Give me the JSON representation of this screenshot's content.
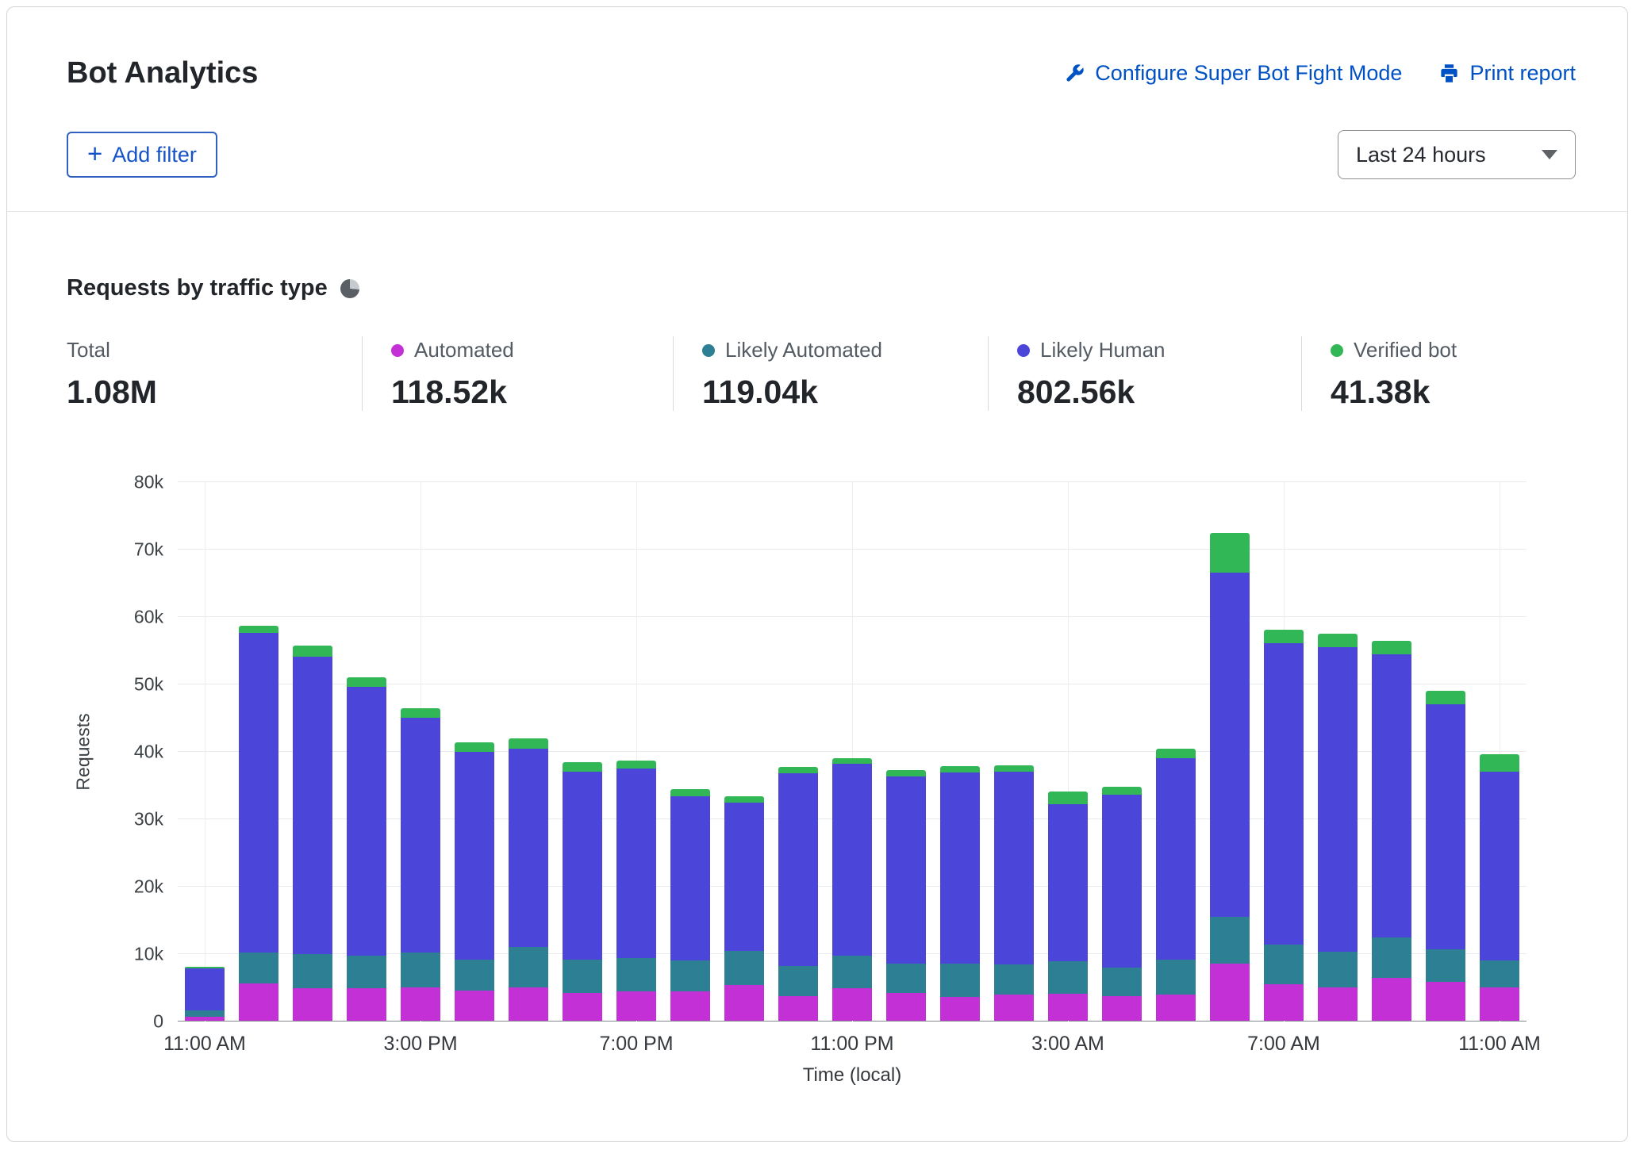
{
  "header": {
    "title": "Bot Analytics",
    "configure_link": "Configure Super Bot Fight Mode",
    "print_link": "Print report",
    "add_filter_label": "Add filter",
    "time_range": "Last 24 hours"
  },
  "icons": {
    "configure": "wrench-icon",
    "print": "printer-icon",
    "add_filter": "plus-icon",
    "time_range": "chevron-down-icon",
    "section": "pie-chart-icon"
  },
  "section": {
    "title": "Requests by traffic type"
  },
  "stats": [
    {
      "label": "Total",
      "value": "1.08M",
      "color": null
    },
    {
      "label": "Automated",
      "value": "118.52k",
      "color": "#c331d6"
    },
    {
      "label": "Likely Automated",
      "value": "119.04k",
      "color": "#2d7f93"
    },
    {
      "label": "Likely Human",
      "value": "802.56k",
      "color": "#4b46d9"
    },
    {
      "label": "Verified bot",
      "value": "41.38k",
      "color": "#32b757"
    }
  ],
  "chart_data": {
    "type": "bar",
    "stacked": true,
    "title": "Requests by traffic type",
    "xlabel": "Time (local)",
    "ylabel": "Requests",
    "ylim": [
      0,
      80000
    ],
    "grid": true,
    "y_ticks": [
      "0",
      "10k",
      "20k",
      "30k",
      "40k",
      "50k",
      "60k",
      "70k",
      "80k"
    ],
    "x_tick_labels": [
      "11:00 AM",
      "3:00 PM",
      "7:00 PM",
      "11:00 PM",
      "3:00 AM",
      "7:00 AM",
      "11:00 AM"
    ],
    "x_tick_positions": [
      0,
      4,
      8,
      12,
      16,
      20,
      24
    ],
    "hours": [
      "11 AM",
      "12 PM",
      "1 PM",
      "2 PM",
      "3 PM",
      "4 PM",
      "5 PM",
      "6 PM",
      "7 PM",
      "8 PM",
      "9 PM",
      "10 PM",
      "11 PM",
      "12 AM",
      "1 AM",
      "2 AM",
      "3 AM",
      "4 AM",
      "5 AM",
      "6 AM",
      "7 AM",
      "8 AM",
      "9 AM",
      "10 AM",
      "11 AM"
    ],
    "series_order": [
      "Automated",
      "Likely Automated",
      "Likely Human",
      "Verified bot"
    ],
    "colors": {
      "automated": "#c331d6",
      "likely_automated": "#2d7f93",
      "likely_human": "#4b46d9",
      "verified_bot": "#32b757"
    },
    "bars": [
      [
        600,
        900,
        6300,
        200
      ],
      [
        5500,
        4600,
        47400,
        1100
      ],
      [
        4800,
        5100,
        44100,
        1600
      ],
      [
        4800,
        4800,
        39900,
        1500
      ],
      [
        4900,
        5200,
        34800,
        1500
      ],
      [
        4500,
        4600,
        30800,
        1400
      ],
      [
        4900,
        6000,
        29500,
        1500
      ],
      [
        4100,
        5000,
        27900,
        1400
      ],
      [
        4400,
        4900,
        28100,
        1200
      ],
      [
        4300,
        4700,
        24300,
        1000
      ],
      [
        5300,
        5100,
        21900,
        1000
      ],
      [
        3600,
        4500,
        28600,
        1000
      ],
      [
        4800,
        4800,
        28500,
        800
      ],
      [
        4100,
        4400,
        27700,
        1000
      ],
      [
        3500,
        5000,
        28300,
        1000
      ],
      [
        3900,
        4500,
        28500,
        1000
      ],
      [
        4000,
        4800,
        23300,
        1900
      ],
      [
        3600,
        4300,
        25600,
        1200
      ],
      [
        3900,
        5200,
        29800,
        1500
      ],
      [
        8500,
        6900,
        51100,
        5900
      ],
      [
        5400,
        5900,
        44700,
        2000
      ],
      [
        4900,
        5300,
        45200,
        2000
      ],
      [
        6400,
        6000,
        42000,
        2000
      ],
      [
        5800,
        4800,
        36400,
        2000
      ],
      [
        4900,
        4100,
        28000,
        2500
      ]
    ]
  }
}
